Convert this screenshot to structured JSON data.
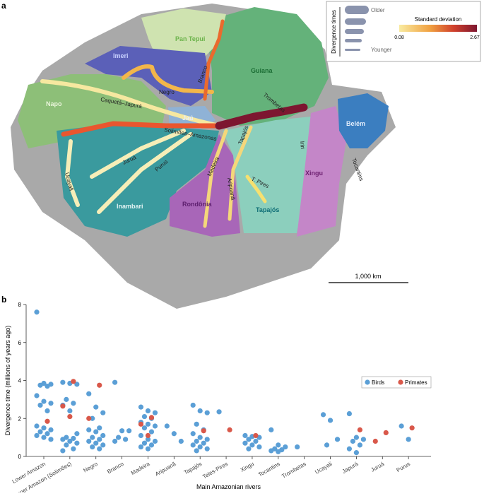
{
  "panel_a": {
    "label": "a",
    "regions": [
      "Pan Tepui",
      "Imeri",
      "Guiana",
      "Napo",
      "Jaú",
      "Belém",
      "Inambari",
      "Rondônia",
      "Tapajós",
      "Xingu"
    ],
    "rivers": [
      "Caquetá–Japurá",
      "Negro",
      "Branco",
      "Trombetas",
      "Solimões–Amazonas",
      "Juruá",
      "Purus",
      "Madeira",
      "Ucayali",
      "Tapajós",
      "Aripuanã",
      "T. Pires",
      "Iriri",
      "Tocantins"
    ],
    "legend": {
      "divergence_title": "Divergence times",
      "older": "Older",
      "younger": "Younger",
      "sd_title": "Standard deviation",
      "sd_min": "0.08",
      "sd_max": "2.67"
    },
    "scale_bar": "1,000 km"
  },
  "panel_b": {
    "label": "b"
  },
  "chart_data": {
    "type": "strip",
    "x_label": "Main Amazonian rivers",
    "y_label": "Divergence time (millions of years ago)",
    "categories": [
      "Lower Amazon",
      "Upper Amazon (Solimões)",
      "Negro",
      "Branco",
      "Madeira",
      "Aripuanã",
      "Tapajós",
      "Teles-Pires",
      "Xingu",
      "Tocantins",
      "Trombetas",
      "Ucayali",
      "Japurá",
      "Juruá",
      "Purus"
    ],
    "ylim": [
      0,
      8
    ],
    "yticks": [
      0,
      2,
      4,
      6,
      8
    ],
    "legend_position": "right",
    "series": [
      {
        "name": "Birds",
        "color": "#5b9fd6",
        "values": [
          [
            7.6,
            3.85,
            3.8,
            3.75,
            3.7,
            3.2,
            2.9,
            2.8,
            2.7,
            2.4,
            1.6,
            1.5,
            1.4,
            1.3,
            1.2,
            1.1,
            1.0,
            0.9
          ],
          [
            3.9,
            3.85,
            3.8,
            3.0,
            2.8,
            2.7,
            2.4,
            1.2,
            1.0,
            0.95,
            0.9,
            0.8,
            0.7,
            0.6,
            0.4,
            0.3
          ],
          [
            3.3,
            2.6,
            2.3,
            2.0,
            1.5,
            1.4,
            1.3,
            1.1,
            1.0,
            0.9,
            0.8,
            0.7,
            0.6,
            0.5,
            0.4
          ],
          [
            3.9,
            1.35,
            1.35,
            1.0,
            0.9,
            0.8
          ],
          [
            2.6,
            2.4,
            2.3,
            2.1,
            2.0,
            1.8,
            1.7,
            1.6,
            1.5,
            1.3,
            1.1,
            0.9,
            0.8,
            0.7,
            0.6,
            0.5,
            0.4
          ],
          [
            1.6,
            1.2,
            0.8
          ],
          [
            2.7,
            2.4,
            2.3,
            1.7,
            1.4,
            1.2,
            1.0,
            0.9,
            0.8,
            0.7,
            0.6,
            0.5,
            0.4,
            0.3
          ],
          [
            2.35
          ],
          [
            1.1,
            1.05,
            1.0,
            0.9,
            0.8,
            0.7,
            0.6,
            0.5,
            0.4
          ],
          [
            1.4,
            0.6,
            0.5,
            0.4,
            0.35,
            0.3,
            0.25
          ],
          [
            0.5
          ],
          [
            2.2,
            1.9,
            0.9,
            0.6
          ],
          [
            2.25,
            1.0,
            0.9,
            0.8,
            0.6,
            0.4,
            0.2
          ],
          [],
          [
            1.6,
            0.9
          ]
        ]
      },
      {
        "name": "Primates",
        "color": "#d9584a",
        "values": [
          [
            1.85
          ],
          [
            3.95,
            2.65,
            2.1
          ],
          [
            3.75,
            2.0
          ],
          [],
          [
            2.05,
            1.7,
            1.1
          ],
          [],
          [
            1.35
          ],
          [
            1.4
          ],
          [
            1.1
          ],
          [],
          [],
          [],
          [
            1.4
          ],
          [
            1.25,
            0.8
          ],
          [
            1.5
          ]
        ]
      }
    ]
  }
}
